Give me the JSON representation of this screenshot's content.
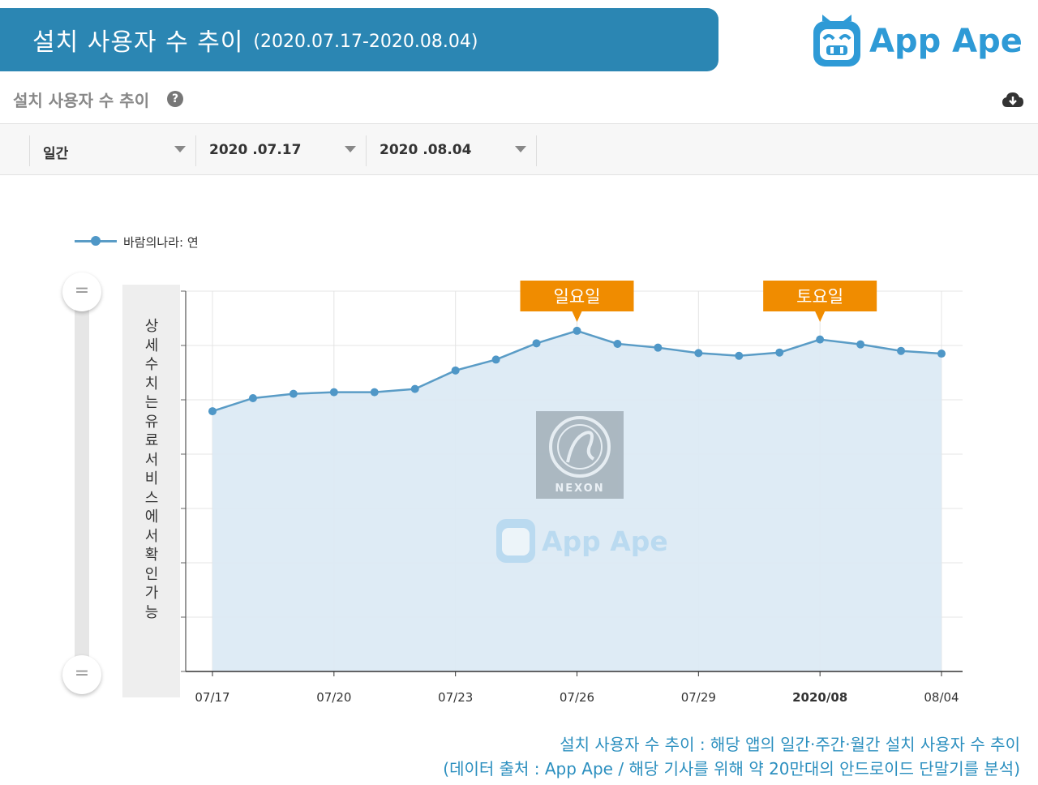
{
  "header": {
    "title": "설치 사용자 수 추이",
    "range": "(2020.07.17-2020.08.04)"
  },
  "brand": {
    "logo_text": "App Ape",
    "color": "#2e9ad6"
  },
  "section": {
    "title": "설치 사용자 수 추이",
    "help_icon": "question-circle-icon",
    "download_icon": "cloud-download-icon"
  },
  "filters": {
    "period": "일간",
    "start": "2020 .07.17",
    "end": "2020 .08.04"
  },
  "side_panel": {
    "text": "상세수치는 유료서비스에서 확인가능"
  },
  "footer": {
    "line1": "설치 사용자 수 추이 : 해당 앱의 일간·주간·월간 설치 사용자 수 추이",
    "line2": "(데이터 출처 : App Ape / 해당 기사를 위해 약 20만대의 안드로이드 단말기를 분석)"
  },
  "watermark": {
    "publisher": "NEXON",
    "brand": "App Ape"
  },
  "chart_data": {
    "type": "area",
    "title": "",
    "legend": [
      "바람의나라: 연"
    ],
    "x": [
      "07/17",
      "07/18",
      "07/19",
      "07/20",
      "07/21",
      "07/22",
      "07/23",
      "07/24",
      "07/25",
      "07/26",
      "07/27",
      "07/28",
      "07/29",
      "07/30",
      "07/31",
      "08/01",
      "08/02",
      "08/03",
      "08/04"
    ],
    "x_tick_labels": [
      {
        "index": 0,
        "label": "07/17",
        "bold": false
      },
      {
        "index": 3,
        "label": "07/20",
        "bold": false
      },
      {
        "index": 6,
        "label": "07/23",
        "bold": false
      },
      {
        "index": 9,
        "label": "07/26",
        "bold": false
      },
      {
        "index": 12,
        "label": "07/29",
        "bold": false
      },
      {
        "index": 15,
        "label": "2020/08",
        "bold": true
      },
      {
        "index": 18,
        "label": "08/04",
        "bold": false
      }
    ],
    "series": [
      {
        "name": "바람의나라: 연",
        "color": "#4f97c7",
        "fill": "#dceaf4",
        "values": [
          4.79,
          5.03,
          5.11,
          5.14,
          5.14,
          5.2,
          5.54,
          5.74,
          6.04,
          6.27,
          6.03,
          5.96,
          5.86,
          5.81,
          5.87,
          6.11,
          6.02,
          5.9,
          5.85
        ]
      }
    ],
    "y_range": [
      0,
      7
    ],
    "y_ticks": [
      0,
      1,
      2,
      3,
      4,
      5,
      6,
      7
    ],
    "y_tick_labels_hidden": true,
    "grid": true,
    "annotations": [
      {
        "index": 9,
        "text": "일요일",
        "color": "#f08c00"
      },
      {
        "index": 15,
        "text": "토요일",
        "color": "#f08c00"
      }
    ]
  }
}
